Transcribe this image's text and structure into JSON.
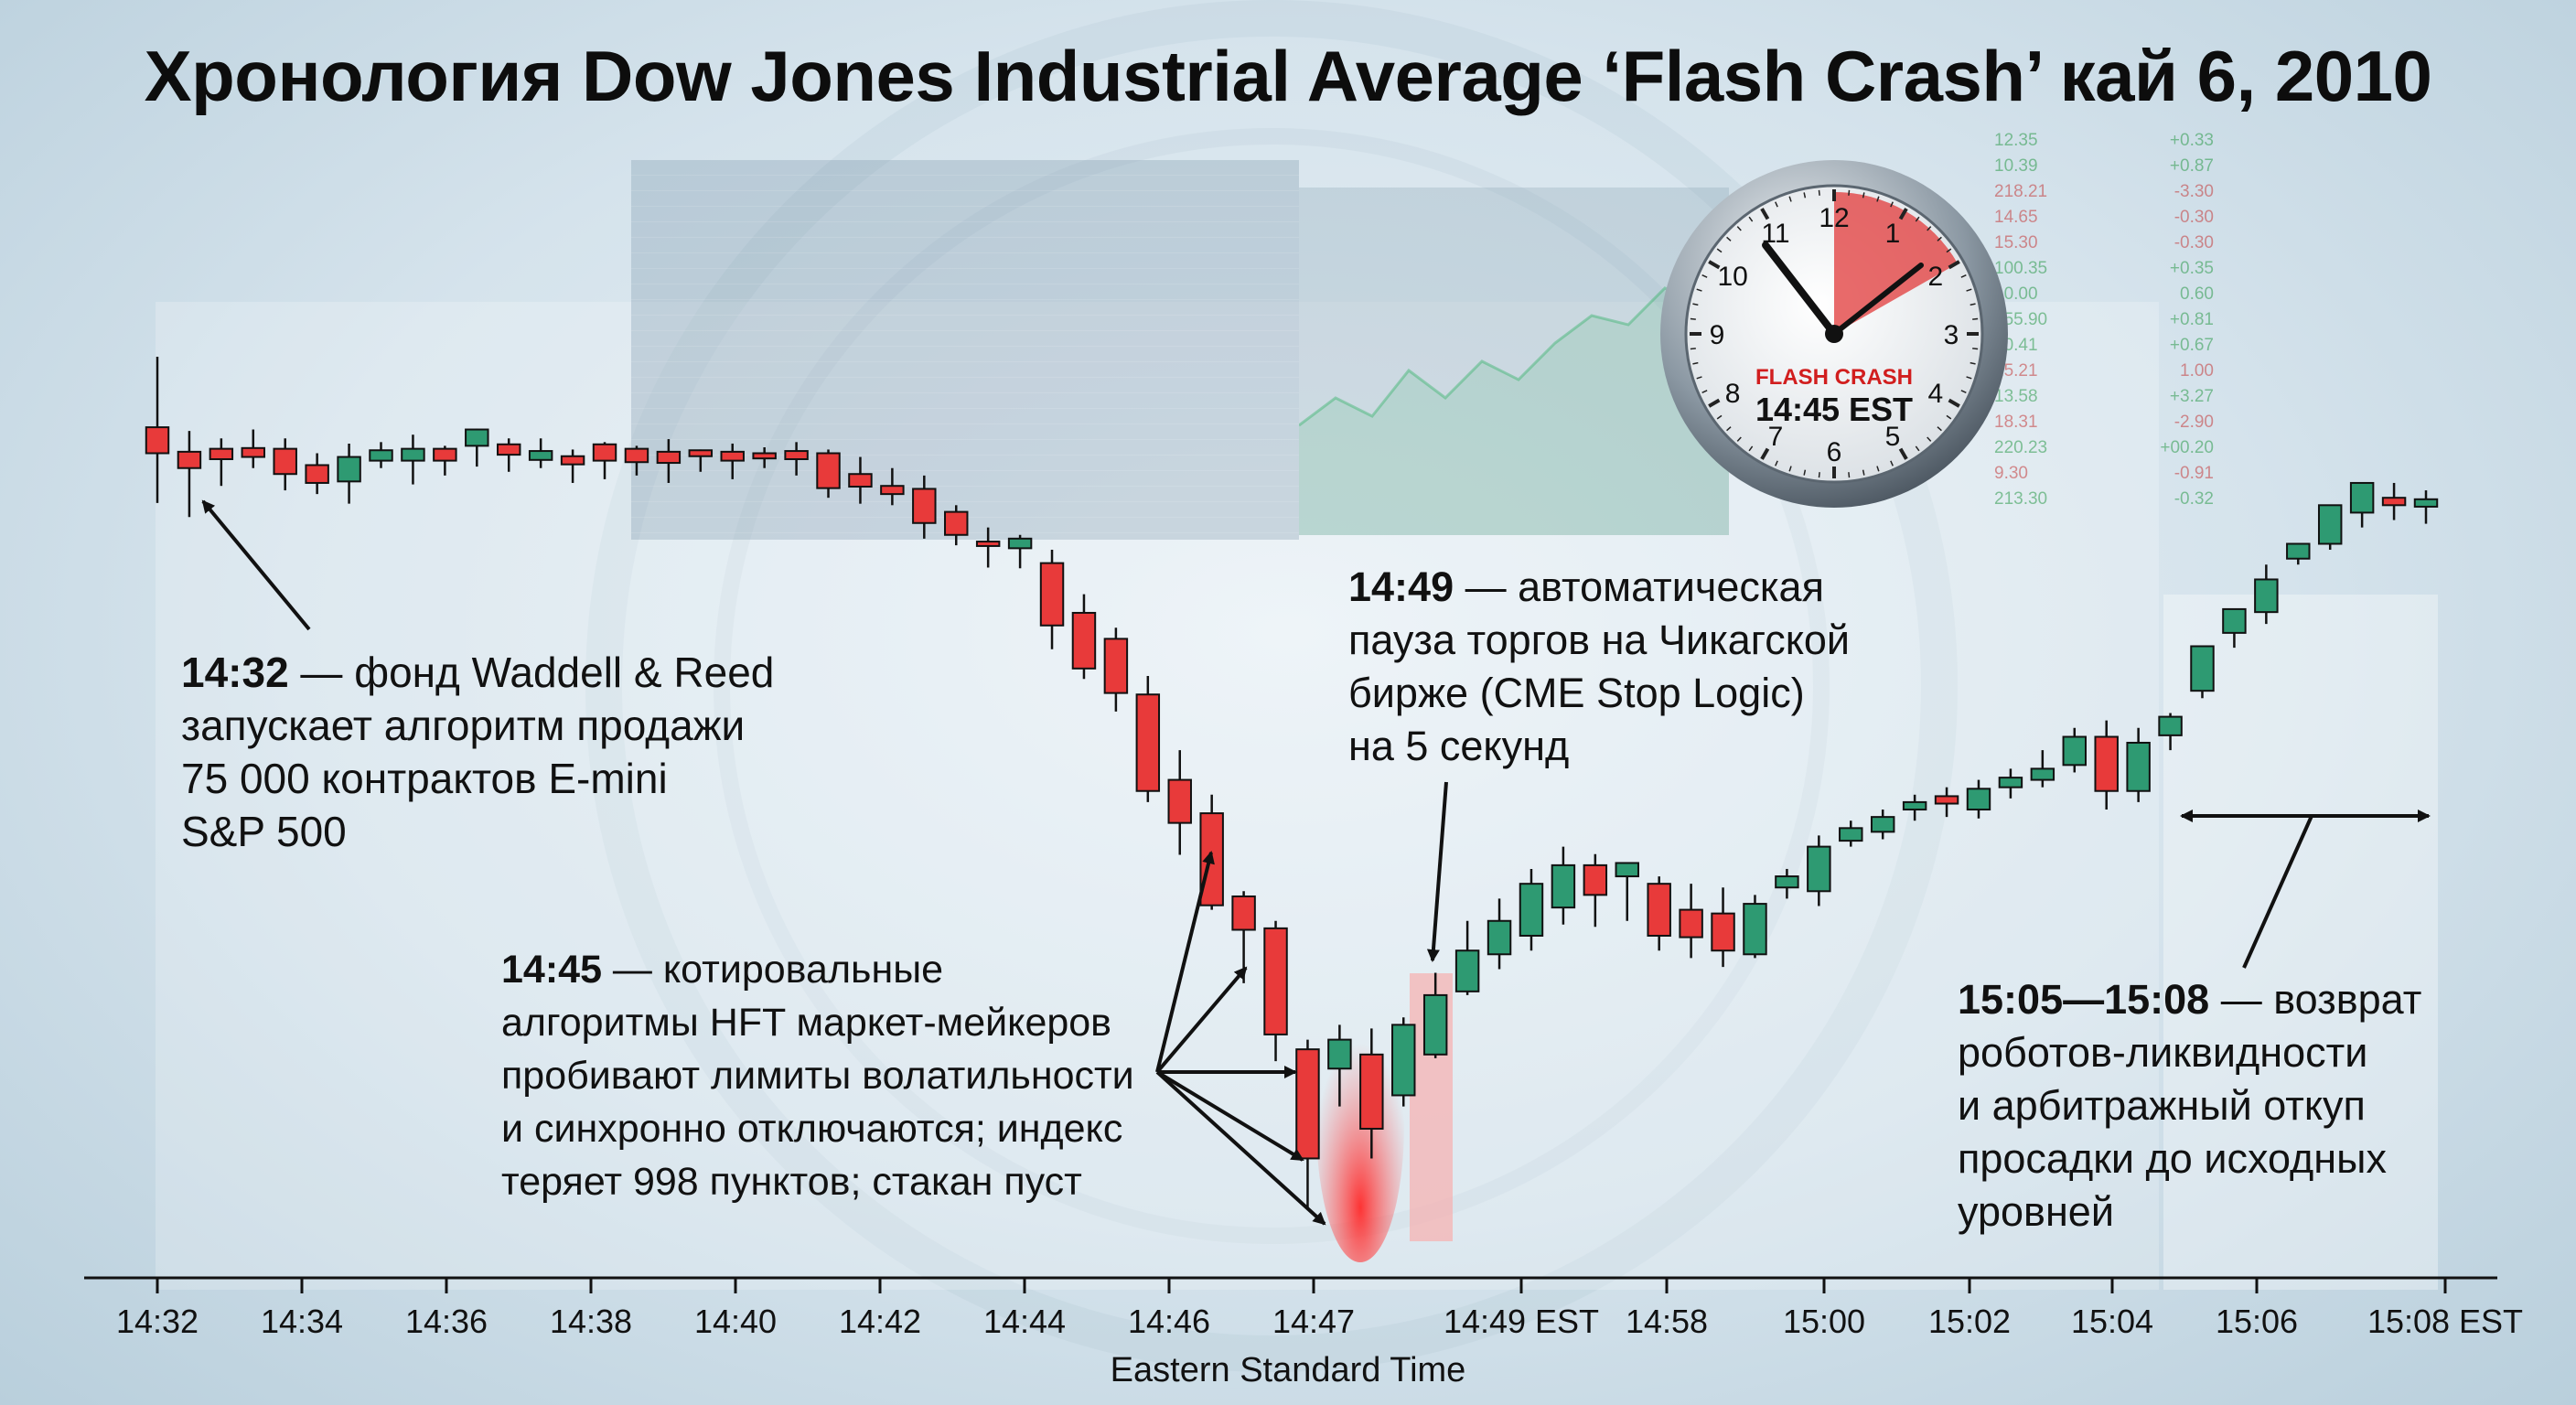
{
  "title": "Хронология Dow Jones Industrial Average ‘Flash Crash’ кай 6, 2010",
  "clock": {
    "label": "FLASH CRASH",
    "time": "14:45 EST",
    "numbers": [
      "12",
      "1",
      "2",
      "3",
      "4",
      "5",
      "6",
      "7",
      "8",
      "9",
      "10",
      "11"
    ]
  },
  "annotations": [
    {
      "key": "a1",
      "time": "14:32",
      "text": " — фонд Waddell & Reed\nзапускает алгоритм продажи\n75 000 контрактов E-mini\nS&P 500"
    },
    {
      "key": "a2",
      "time": "14:45",
      "text": " — котировальные\nалгоритмы HFT маркет-мейкеров\nпробивают лимиты волатильности\nи синхронно отключаются; индекс\nтеряет 998 пунктов; стакан пуст"
    },
    {
      "key": "a3",
      "time": "14:49",
      "text": " — автоматическая\nпауза торгов на Чикагской\nбирже (CME Stop Logic)\nна 5 секунд"
    },
    {
      "key": "a4",
      "time": "15:05—15:08",
      "text": " — возврат\nроботов-ликвидности\nи арбитражный откуп\nпросадки до исходных\nуровней"
    }
  ],
  "ticker": [
    [
      "12.35",
      "+0.33",
      "up"
    ],
    [
      "10.39",
      "+0.87",
      "up"
    ],
    [
      "218.21",
      "-3.30",
      "dn"
    ],
    [
      "14.65",
      "-0.30",
      "dn"
    ],
    [
      "15.30",
      "-0.30",
      "dn"
    ],
    [
      "100.35",
      "+0.35",
      "up"
    ],
    [
      "10.00",
      "0.60",
      "up"
    ],
    [
      "155.90",
      "+0.81",
      "up"
    ],
    [
      "10.41",
      "+0.67",
      "up"
    ],
    [
      "15.21",
      "1.00",
      "dn"
    ],
    [
      "13.58",
      "+3.27",
      "up"
    ],
    [
      "18.31",
      "-2.90",
      "dn"
    ],
    [
      "220.23",
      "+00.20",
      "up"
    ],
    [
      "9.30",
      "-0.91",
      "dn"
    ],
    [
      "213.30",
      "-0.32",
      "up"
    ]
  ],
  "colors": {
    "up": "#2e9a72",
    "down": "#e83a3a",
    "highlight": "#f5b3b3"
  },
  "chart_data": {
    "type": "candlestick",
    "xlabel": "Eastern Standard Time",
    "x_ticks": [
      "14:32",
      "14:34",
      "14:36",
      "14:38",
      "14:40",
      "14:42",
      "14:44",
      "14:46",
      "14:47",
      "14:49 EST",
      "14:58",
      "15:00",
      "15:02",
      "15:04",
      "15:06",
      "15:08 EST"
    ],
    "candles": [
      [
        1.0,
        0.905,
        0.87,
        0.803
      ],
      [
        0.9,
        0.872,
        0.85,
        0.784
      ],
      [
        0.89,
        0.876,
        0.862,
        0.826
      ],
      [
        0.902,
        0.877,
        0.865,
        0.85
      ],
      [
        0.89,
        0.876,
        0.842,
        0.82
      ],
      [
        0.87,
        0.854,
        0.83,
        0.815
      ],
      [
        0.883,
        0.832,
        0.865,
        0.802
      ],
      [
        0.885,
        0.86,
        0.874,
        0.85
      ],
      [
        0.895,
        0.86,
        0.876,
        0.828
      ],
      [
        0.88,
        0.876,
        0.86,
        0.84
      ],
      [
        0.903,
        0.88,
        0.902,
        0.852
      ],
      [
        0.89,
        0.882,
        0.868,
        0.845
      ],
      [
        0.89,
        0.861,
        0.873,
        0.85
      ],
      [
        0.875,
        0.866,
        0.855,
        0.83
      ],
      [
        0.885,
        0.882,
        0.86,
        0.835
      ],
      [
        0.88,
        0.876,
        0.858,
        0.84
      ],
      [
        0.889,
        0.872,
        0.857,
        0.83
      ],
      [
        0.875,
        0.874,
        0.866,
        0.845
      ],
      [
        0.883,
        0.872,
        0.86,
        0.835
      ],
      [
        0.878,
        0.87,
        0.863,
        0.85
      ],
      [
        0.885,
        0.873,
        0.862,
        0.84
      ],
      [
        0.875,
        0.87,
        0.823,
        0.81
      ],
      [
        0.865,
        0.842,
        0.825,
        0.802
      ],
      [
        0.85,
        0.826,
        0.815,
        0.8
      ],
      [
        0.84,
        0.822,
        0.776,
        0.755
      ],
      [
        0.8,
        0.791,
        0.76,
        0.746
      ],
      [
        0.77,
        0.751,
        0.745,
        0.716
      ],
      [
        0.76,
        0.742,
        0.755,
        0.715
      ],
      [
        0.74,
        0.722,
        0.638,
        0.606
      ],
      [
        0.68,
        0.655,
        0.58,
        0.566
      ],
      [
        0.635,
        0.62,
        0.547,
        0.522
      ],
      [
        0.57,
        0.545,
        0.415,
        0.4
      ],
      [
        0.47,
        0.43,
        0.372,
        0.329
      ],
      [
        0.41,
        0.385,
        0.261,
        0.255
      ],
      [
        0.28,
        0.273,
        0.228,
        0.156
      ],
      [
        0.24,
        0.23,
        0.087,
        0.051
      ],
      [
        0.08,
        0.067,
        -0.08,
        -0.146
      ],
      [
        0.1,
        0.041,
        0.08,
        -0.01
      ],
      [
        0.095,
        0.06,
        -0.04,
        -0.08
      ],
      [
        0.11,
        0.005,
        0.1,
        -0.01
      ],
      [
        0.17,
        0.06,
        0.14,
        0.055
      ],
      [
        0.24,
        0.145,
        0.2,
        0.14
      ],
      [
        0.27,
        0.195,
        0.24,
        0.175
      ],
      [
        0.31,
        0.22,
        0.29,
        0.2
      ],
      [
        0.34,
        0.258,
        0.315,
        0.235
      ],
      [
        0.33,
        0.315,
        0.275,
        0.232
      ],
      [
        0.31,
        0.3,
        0.318,
        0.24
      ],
      [
        0.3,
        0.29,
        0.22,
        0.2
      ],
      [
        0.29,
        0.255,
        0.218,
        0.19
      ],
      [
        0.285,
        0.25,
        0.2,
        0.178
      ],
      [
        0.275,
        0.195,
        0.263,
        0.19
      ],
      [
        0.31,
        0.285,
        0.3,
        0.27
      ],
      [
        0.355,
        0.28,
        0.34,
        0.26
      ],
      [
        0.375,
        0.348,
        0.365,
        0.34
      ],
      [
        0.39,
        0.36,
        0.38,
        0.35
      ],
      [
        0.41,
        0.39,
        0.4,
        0.375
      ],
      [
        0.42,
        0.408,
        0.398,
        0.38
      ],
      [
        0.43,
        0.39,
        0.418,
        0.378
      ],
      [
        0.445,
        0.42,
        0.433,
        0.405
      ],
      [
        0.47,
        0.43,
        0.445,
        0.42
      ],
      [
        0.5,
        0.45,
        0.488,
        0.44
      ],
      [
        0.51,
        0.488,
        0.415,
        0.39
      ],
      [
        0.5,
        0.415,
        0.48,
        0.4
      ],
      [
        0.52,
        0.49,
        0.515,
        0.47
      ],
      [
        0.59,
        0.55,
        0.61,
        0.54
      ],
      [
        0.65,
        0.628,
        0.66,
        0.608
      ],
      [
        0.72,
        0.656,
        0.7,
        0.64
      ],
      [
        0.74,
        0.728,
        0.748,
        0.72
      ],
      [
        0.775,
        0.748,
        0.8,
        0.74
      ],
      [
        0.81,
        0.79,
        0.83,
        0.77
      ],
      [
        0.83,
        0.81,
        0.8,
        0.78
      ],
      [
        0.82,
        0.798,
        0.808,
        0.775
      ]
    ],
    "candle_format": "[high, open, close, low] normalized 0-1"
  }
}
